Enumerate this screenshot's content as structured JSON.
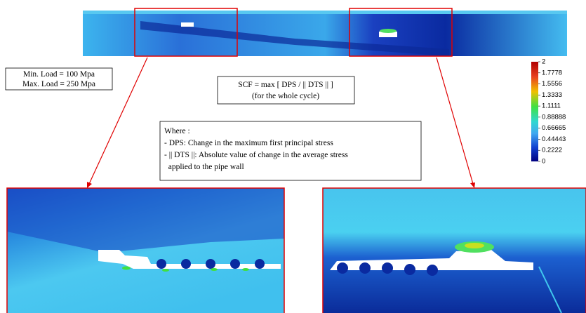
{
  "load_box": {
    "lines": [
      "Min. Load = 100 Mpa",
      "Max. Load = 250 Mpa"
    ]
  },
  "scf_box": {
    "lines": [
      "SCF = max [ DPS / || DTS || ]",
      "(for the whole cycle)"
    ]
  },
  "where_box": {
    "lines": [
      "Where :",
      "- DPS: Change in the maximum first principal stress",
      "- || DTS ||: Absolute value of change in the average stress",
      "  applied to the pipe wall"
    ]
  },
  "colorbar": {
    "lim": [
      0,
      2
    ],
    "ticks": [
      2,
      1.7778,
      1.5556,
      1.3333,
      1.1111,
      0.88888,
      0.66665,
      0.44443,
      0.2222,
      0
    ]
  }
}
